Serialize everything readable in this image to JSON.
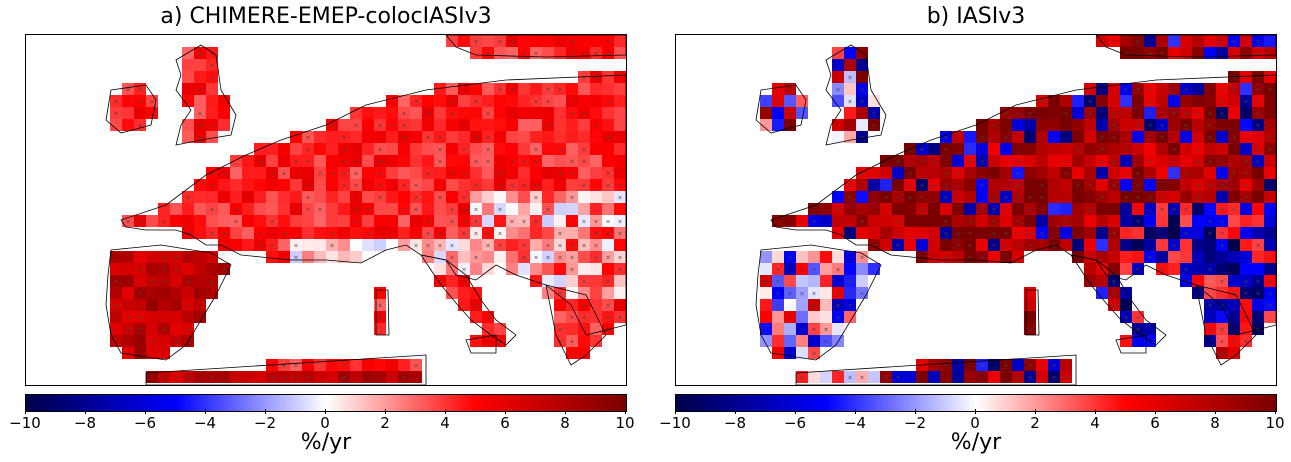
{
  "panels": [
    {
      "title": "a) CHIMERE-EMEP-colocIASIv3",
      "mode": "model"
    },
    {
      "title": "b) IASIv3",
      "mode": "obs"
    }
  ],
  "colorbar": {
    "ticks": [
      "−10",
      "−8",
      "−6",
      "−4",
      "−2",
      "0",
      "2",
      "4",
      "6",
      "8",
      "10"
    ],
    "unit": "%/yr",
    "range": [
      -10,
      10
    ],
    "colors": {
      "min": "#00004a",
      "mid": "#ffffff",
      "max": "#7a0000"
    }
  }
}
